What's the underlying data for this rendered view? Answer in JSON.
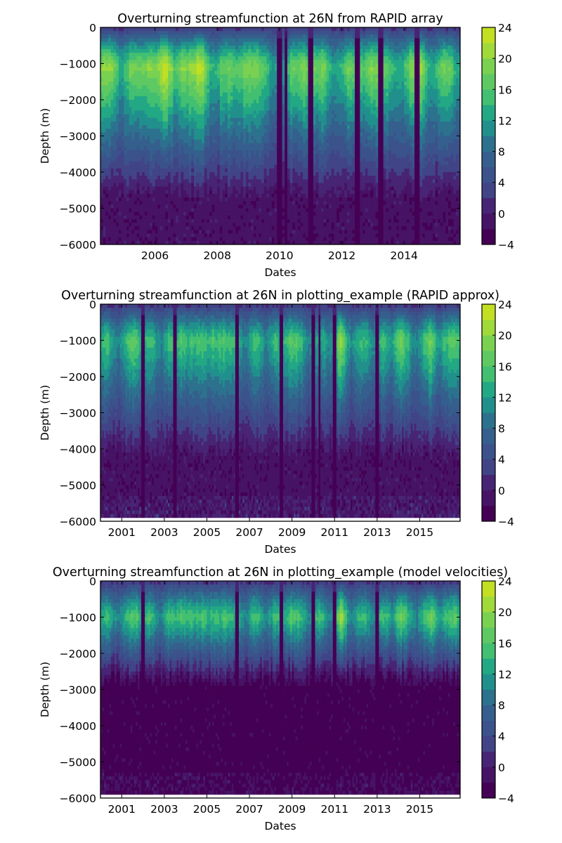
{
  "chart_data": [
    {
      "type": "heatmap",
      "title": "Overturning streamfunction at 26N from RAPID array",
      "xlabel": "Dates",
      "ylabel": "Depth (m)",
      "xlim": [
        2004.25,
        2015.8
      ],
      "ylim": [
        -6000,
        0
      ],
      "xticks": [
        2006,
        2008,
        2010,
        2012,
        2014
      ],
      "xtick_labels": [
        "2006",
        "2008",
        "2010",
        "2012",
        "2014"
      ],
      "yticks": [
        0,
        -1000,
        -2000,
        -3000,
        -4000,
        -5000,
        -6000
      ],
      "ytick_labels": [
        "0",
        "−1000",
        "−2000",
        "−3000",
        "−4000",
        "−5000",
        "−6000"
      ],
      "data_bottom_depth": -6000,
      "profile": {
        "max_value": 22,
        "max_depth": -1100,
        "zero_depth": -4600,
        "deep_value": -1
      },
      "strong_years": [
        2004.6,
        2005.8,
        2006.3,
        2006.9,
        2007.5,
        2008.9,
        2010.8,
        2012.9,
        2014.5
      ],
      "weak_events": [
        2010.0,
        2010.2,
        2011.0,
        2012.5,
        2013.25,
        2014.4
      ],
      "colorbar": {
        "levels": [
          -4,
          -2,
          0,
          2,
          4,
          6,
          8,
          10,
          12,
          14,
          16,
          18,
          20,
          22,
          24
        ],
        "tick_values": [
          -4,
          0,
          4,
          8,
          12,
          16,
          20,
          24
        ],
        "tick_labels": [
          "−4",
          "0",
          "4",
          "8",
          "12",
          "16",
          "20",
          "24"
        ]
      },
      "grid": false
    },
    {
      "type": "heatmap",
      "title": "Overturning streamfunction at 26N in plotting_example (RAPID approx)",
      "xlabel": "Dates",
      "ylabel": "Depth (m)",
      "xlim": [
        2000.0,
        2016.9
      ],
      "ylim": [
        -6000,
        0
      ],
      "xticks": [
        2001,
        2003,
        2005,
        2007,
        2009,
        2011,
        2013,
        2015
      ],
      "xtick_labels": [
        "2001",
        "2003",
        "2005",
        "2007",
        "2009",
        "2011",
        "2013",
        "2015"
      ],
      "yticks": [
        0,
        -1000,
        -2000,
        -3000,
        -4000,
        -5000,
        -6000
      ],
      "ytick_labels": [
        "0",
        "−1000",
        "−2000",
        "−3000",
        "−4000",
        "−5000",
        "−6000"
      ],
      "data_bottom_depth": -5900,
      "profile": {
        "max_value": 18.5,
        "max_depth": -1000,
        "zero_depth": -4100,
        "deep_value": -1
      },
      "strong_years": [
        2001.7,
        2003.8,
        2004.8,
        2005.8,
        2008.9,
        2011.3,
        2014.0,
        2015.6,
        2016.7
      ],
      "weak_events": [
        2002.0,
        2003.5,
        2006.4,
        2008.5,
        2010.0,
        2010.3,
        2011.0,
        2013.0
      ],
      "colorbar": {
        "levels": [
          -4,
          -2,
          0,
          2,
          4,
          6,
          8,
          10,
          12,
          14,
          16,
          18,
          20,
          22,
          24
        ],
        "tick_values": [
          -4,
          0,
          4,
          8,
          12,
          16,
          20,
          24
        ],
        "tick_labels": [
          "−4",
          "0",
          "4",
          "8",
          "12",
          "16",
          "20",
          "24"
        ]
      },
      "grid": false
    },
    {
      "type": "heatmap",
      "title": "Overturning streamfunction at 26N in plotting_example (model velocities)",
      "xlabel": "Dates",
      "ylabel": "Depth (m)",
      "xlim": [
        2000.0,
        2016.9
      ],
      "ylim": [
        -6000,
        0
      ],
      "xticks": [
        2001,
        2003,
        2005,
        2007,
        2009,
        2011,
        2013,
        2015
      ],
      "xtick_labels": [
        "2001",
        "2003",
        "2005",
        "2007",
        "2009",
        "2011",
        "2013",
        "2015"
      ],
      "yticks": [
        0,
        -1000,
        -2000,
        -3000,
        -4000,
        -5000,
        -6000
      ],
      "ytick_labels": [
        "0",
        "−1000",
        "−2000",
        "−3000",
        "−4000",
        "−5000",
        "−6000"
      ],
      "data_bottom_depth": -5900,
      "profile": {
        "max_value": 18.5,
        "max_depth": -1000,
        "zero_depth": -2700,
        "deep_value": -3
      },
      "strong_years": [
        2001.7,
        2003.8,
        2004.8,
        2005.8,
        2008.9,
        2011.3,
        2014.0,
        2015.6,
        2016.7
      ],
      "weak_events": [
        2002.0,
        2006.4,
        2008.5,
        2010.0,
        2011.0,
        2013.0
      ],
      "colorbar": {
        "levels": [
          -4,
          -2,
          0,
          2,
          4,
          6,
          8,
          10,
          12,
          14,
          16,
          18,
          20,
          22,
          24
        ],
        "tick_values": [
          -4,
          0,
          4,
          8,
          12,
          16,
          20,
          24
        ],
        "tick_labels": [
          "−4",
          "0",
          "4",
          "8",
          "12",
          "16",
          "20",
          "24"
        ]
      },
      "grid": false
    }
  ],
  "colormap": [
    "#440154",
    "#471365",
    "#482475",
    "#414487",
    "#3b528b",
    "#355f8d",
    "#2c728e",
    "#21908d",
    "#22a884",
    "#43bf71",
    "#5ec962",
    "#7ad151",
    "#9fda3a",
    "#c2df23",
    "#fde725"
  ]
}
